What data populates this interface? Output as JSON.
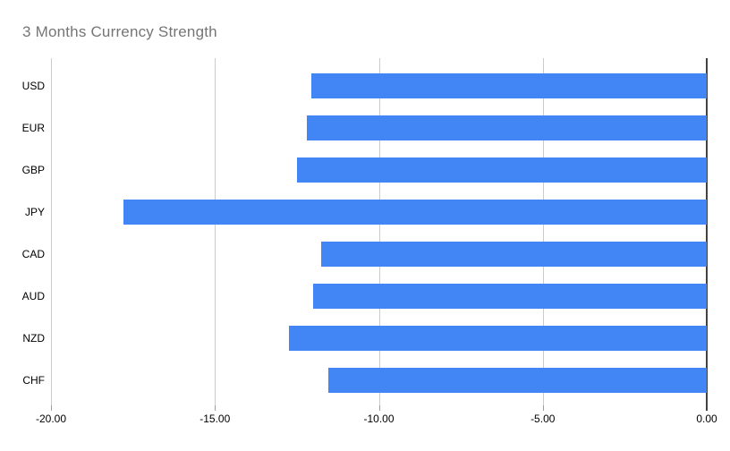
{
  "title": "3 Months Currency Strength",
  "colors": {
    "bar": "#4285F4",
    "gridline": "#cccccc",
    "zero_line": "#424242",
    "tick": "#9e9e9e",
    "title_text": "#757575",
    "axis_text": "#000000",
    "background": "#ffffff"
  },
  "chart_data": {
    "type": "bar",
    "orientation": "horizontal",
    "title": "3 Months Currency Strength",
    "categories": [
      "USD",
      "EUR",
      "GBP",
      "JPY",
      "CAD",
      "AUD",
      "NZD",
      "CHF"
    ],
    "values": [
      -12.05,
      -12.2,
      -12.5,
      -17.8,
      -11.75,
      -12.0,
      -12.75,
      -11.55
    ],
    "xlabel": "",
    "ylabel": "",
    "xlim": [
      -20,
      0
    ],
    "x_ticks": [
      -20,
      -15,
      -10,
      -5,
      0
    ],
    "x_tick_labels": [
      "-20.00",
      "-15.00",
      "-10.00",
      "-5.00",
      "0.00"
    ],
    "grid": "vertical",
    "legend": "none",
    "series_color": "#4285F4"
  }
}
